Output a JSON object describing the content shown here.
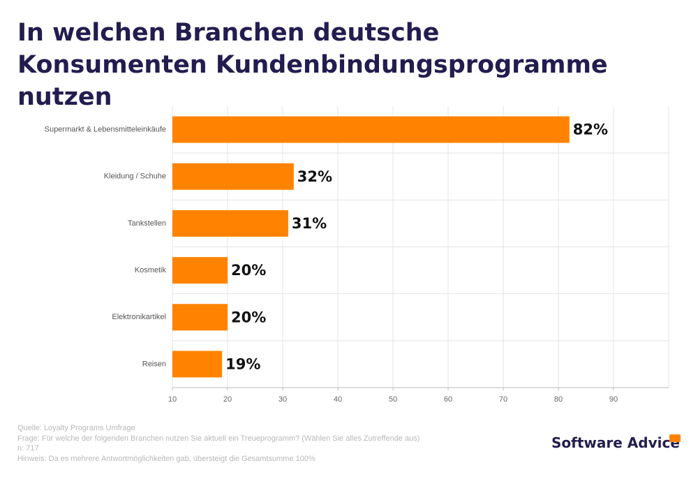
{
  "chart_data": {
    "type": "bar",
    "orientation": "horizontal",
    "title": "In welchen Branchen deutsche Konsumenten Kundenbindungsprogramme nutzen",
    "categories": [
      "Supermarkt & Lebensmitteleinkäufe",
      "Kleidung / Schuhe",
      "Tankstellen",
      "Kosmetik",
      "Elektronikartikel",
      "Reisen"
    ],
    "values": [
      82,
      32,
      31,
      20,
      20,
      19
    ],
    "value_labels": [
      "82%",
      "32%",
      "31%",
      "20%",
      "20%",
      "19%"
    ],
    "color": "#ff8300",
    "xlim": [
      10,
      100
    ],
    "xticks": [
      10,
      20,
      30,
      40,
      50,
      60,
      70,
      80,
      90
    ],
    "grid": true
  },
  "footer": {
    "notes": [
      "Quelle: Loyalty Programs Umfrage",
      "Frage: Für welche der folgenden Branchen nutzen Sie aktuell ein Treueprogramm? (Wählen Sie alles Zutreffende aus)",
      "n: 717",
      "Hinweis: Da es mehrere Antwortmöglichkeiten gab, übersteigt die Gesamtsumme 100%"
    ],
    "brand": "Software Advice"
  }
}
